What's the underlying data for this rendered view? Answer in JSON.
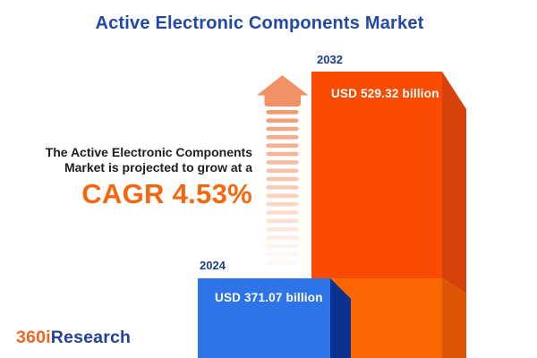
{
  "header": {
    "title": "Active Electronic Components Market"
  },
  "promo": {
    "line1": "The Active Electronic Components",
    "line2": "Market is projected to grow at a",
    "cagr_label": "CAGR 4.53%"
  },
  "chart_data": {
    "type": "bar",
    "title": "Active Electronic Components Market",
    "categories": [
      "2024",
      "2032"
    ],
    "values": [
      371.07,
      529.32
    ],
    "value_labels": [
      "USD 371.07 billion",
      "USD 529.32 billion"
    ],
    "unit": "USD billion",
    "cagr_percent": 4.53,
    "legend": "none",
    "orientation": "vertical",
    "style": "3d-bars-cropped-at-bottom",
    "annotations": [
      "upward dashed fading arrow between text and bars"
    ]
  },
  "bars": {
    "b2024": {
      "year": "2024",
      "label": "USD 371.07 billion"
    },
    "b2032": {
      "year": "2032",
      "label": "USD 529.32 billion"
    }
  },
  "logo": {
    "part1": "360i",
    "part2": "Research"
  },
  "colors": {
    "title_blue": "#2348A8",
    "year_blue": "#1E3D90",
    "cagr_orange": "#F5660D",
    "text_dark": "#1E1E1E",
    "bar2032_front_top": "#F94B04",
    "bar2032_front_bottom": "#F96602",
    "bar2032_side_top": "#D64207",
    "bar2032_side_bottom": "#DF5506",
    "bar2024_front": "#2E74E8",
    "bar2024_side": "#0B3190",
    "arrow_orange": "#F29166",
    "value_text": "#FFFFFF",
    "logo_orange": "#F26522",
    "logo_blue": "#21419B"
  }
}
